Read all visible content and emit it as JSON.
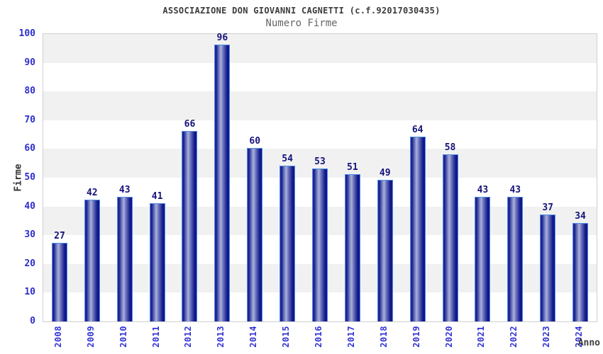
{
  "title": "ASSOCIAZIONE DON GIOVANNI CAGNETTI (c.f.92017030435)",
  "subtitle": "Numero Firme",
  "chart_data": {
    "type": "bar",
    "title": "ASSOCIAZIONE DON GIOVANNI CAGNETTI (c.f.92017030435)",
    "subtitle": "Numero Firme",
    "xlabel": "Anno",
    "ylabel": "Firme",
    "categories": [
      "2008",
      "2009",
      "2010",
      "2011",
      "2012",
      "2013",
      "2014",
      "2015",
      "2016",
      "2017",
      "2018",
      "2019",
      "2020",
      "2021",
      "2022",
      "2023",
      "2024"
    ],
    "values": [
      27,
      42,
      43,
      41,
      66,
      96,
      60,
      54,
      53,
      51,
      49,
      64,
      58,
      43,
      43,
      37,
      34
    ],
    "ylim": [
      0,
      100
    ],
    "ytick_step": 10,
    "grid": "alternating-horizontal-bands",
    "legend": "none",
    "colors": {
      "bar_dark": "#161c8b",
      "bar_light": "#a9b1dc",
      "bar_outline": "#4d8ee4",
      "tick_label_blue": "#2d2dcd",
      "x_tick_label_blue": "#3333d4",
      "value_label_navy": "#14137b",
      "band_gray": "#f1f1f1",
      "band_white": "#ffffff",
      "plot_border": "#cfcfcf",
      "title_color": "#3b3b3b",
      "subtitle_color": "#666666",
      "axis_title_color": "#333333"
    }
  }
}
